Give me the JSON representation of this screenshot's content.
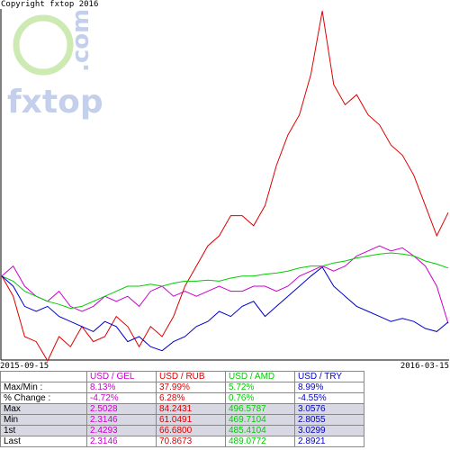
{
  "copyright": "Copyright fxtop 2016",
  "logo": {
    "name": "fxtop",
    "suffix": ".com"
  },
  "chart_data": {
    "type": "line",
    "xticks": [
      "2015-09-15",
      "2016-03-15"
    ],
    "ylim": [
      91.5,
      126.5
    ],
    "series": [
      {
        "name": "USD / GEL",
        "color": "#cc00cc",
        "values": [
          100,
          101,
          99,
          98,
          97.5,
          98.5,
          97,
          96.5,
          97,
          98,
          97.5,
          98,
          97,
          98.5,
          99,
          98,
          98.5,
          98,
          98.5,
          99,
          98.5,
          98.5,
          99,
          99,
          98.5,
          99,
          100,
          100.5,
          101,
          100.5,
          101,
          102,
          102.5,
          103,
          102.5,
          102.8,
          102,
          101,
          99,
          95.3
        ]
      },
      {
        "name": "USD / RUB",
        "color": "#dd0000",
        "values": [
          100,
          98,
          94,
          93.5,
          91.6,
          94,
          93,
          95,
          93.5,
          94,
          96,
          95,
          93,
          95,
          94,
          96,
          99,
          101,
          103,
          104,
          106,
          106,
          105,
          107,
          111,
          114,
          116,
          120,
          126.3,
          119,
          117,
          118,
          116,
          115,
          113,
          112,
          110,
          107,
          104,
          106.3
        ]
      },
      {
        "name": "USD / AMD",
        "color": "#00cc00",
        "values": [
          100,
          99.5,
          98.5,
          98,
          97.5,
          97.2,
          96.8,
          97,
          97.5,
          98,
          98.5,
          99,
          99,
          99.2,
          99,
          99.3,
          99.5,
          99.5,
          99.6,
          99.5,
          99.8,
          100,
          100,
          100.2,
          100.3,
          100.5,
          100.8,
          101,
          101,
          101.3,
          101.5,
          101.8,
          102,
          102.2,
          102.3,
          102.2,
          102,
          101.5,
          101.2,
          100.8
        ]
      },
      {
        "name": "USD / TRY",
        "color": "#0000cc",
        "values": [
          100,
          99,
          97,
          96.5,
          97,
          96,
          95.5,
          95,
          94.5,
          95.5,
          95,
          93.5,
          94,
          93,
          92.6,
          93.5,
          94,
          95,
          95.5,
          96.5,
          96,
          97,
          97.5,
          96,
          97,
          98,
          99,
          100,
          100.9,
          99,
          98,
          97,
          96.5,
          96,
          95.5,
          95.8,
          95.5,
          94.8,
          94.5,
          95.45
        ]
      }
    ]
  },
  "table": {
    "rows": [
      {
        "label": "Max/Min :",
        "cells": [
          "8.13%",
          "37.99%",
          "5.72%",
          "8.99%"
        ]
      },
      {
        "label": "% Change :",
        "cells": [
          "-4.72%",
          "6.28%",
          "0.76%",
          "-4.55%"
        ]
      },
      {
        "label": "Max",
        "cells": [
          "2.5028",
          "84.2431",
          "496.5787",
          "3.0576"
        ]
      },
      {
        "label": "Min",
        "cells": [
          "2.3146",
          "61.0491",
          "469.7104",
          "2.8055"
        ]
      },
      {
        "label": "1st",
        "cells": [
          "2.4293",
          "66.6800",
          "485.4104",
          "3.0299"
        ]
      },
      {
        "label": "Last",
        "cells": [
          "2.3146",
          "70.8673",
          "489.0772",
          "2.8921"
        ]
      }
    ]
  }
}
